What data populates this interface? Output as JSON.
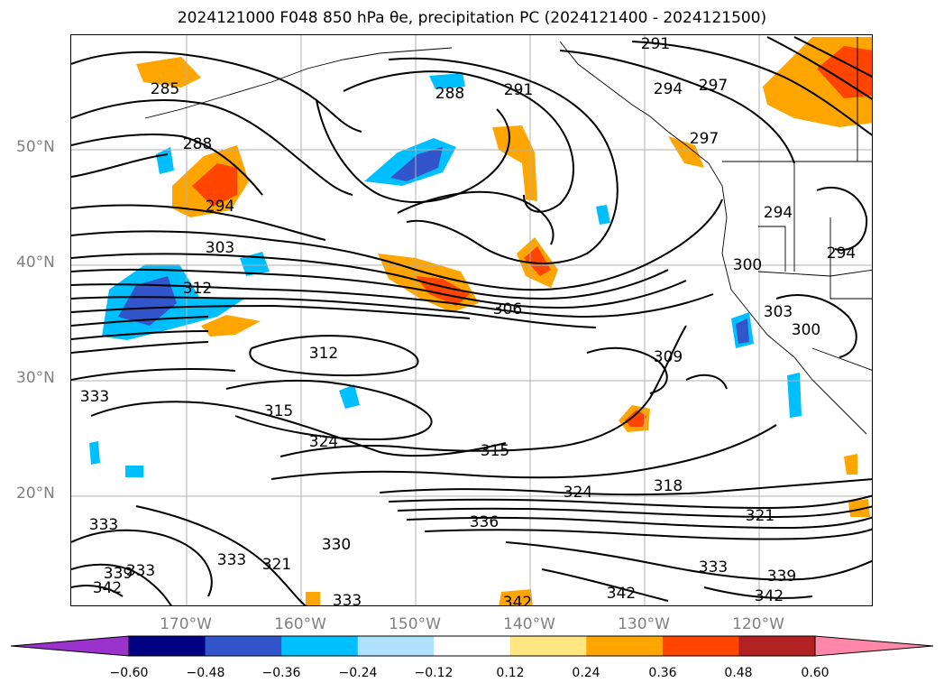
{
  "title": "2024121000 F048 850 hPa θe, precipitation PC (2024121400 - 2024121500)",
  "lat_labels": [
    "50°N",
    "40°N",
    "30°N",
    "20°N"
  ],
  "lon_labels": [
    "170°W",
    "160°W",
    "150°W",
    "140°W",
    "130°W",
    "120°W"
  ],
  "contour_labels": [
    "291",
    "285",
    "288",
    "291",
    "294",
    "297",
    "297",
    "288",
    "294",
    "303",
    "312",
    "300",
    "306",
    "303",
    "300",
    "294",
    "294",
    "312",
    "309",
    "333",
    "315",
    "324",
    "315",
    "324",
    "318",
    "321",
    "336",
    "333",
    "330",
    "333",
    "321",
    "333",
    "339",
    "342",
    "333",
    "342",
    "342",
    "339",
    "342",
    "333"
  ],
  "colorbar": {
    "ticks": [
      "−0.60",
      "−0.48",
      "−0.36",
      "−0.24",
      "−0.12",
      "0.12",
      "0.24",
      "0.36",
      "0.48",
      "0.60"
    ],
    "colors": [
      "#9933cc",
      "#000080",
      "#3355cc",
      "#00bfff",
      "#b0e0ff",
      "#ffffff",
      "#ffe680",
      "#ffa500",
      "#ff4500",
      "#b22222",
      "#ff88aa"
    ]
  }
}
